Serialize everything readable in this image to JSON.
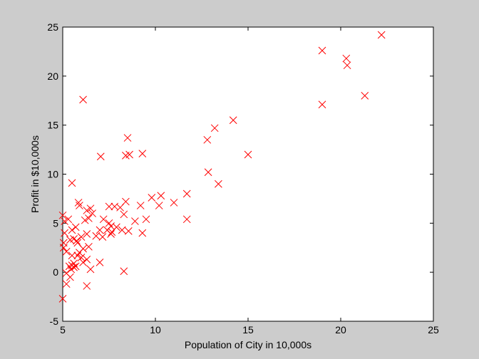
{
  "chart_data": {
    "type": "scatter",
    "title": "",
    "xlabel": "Population of City in 10,000s",
    "ylabel": "Profit in $10,000s",
    "xlim": [
      5,
      25
    ],
    "ylim": [
      -5,
      25
    ],
    "xticks": [
      5,
      10,
      15,
      20,
      25
    ],
    "yticks": [
      -5,
      0,
      5,
      10,
      15,
      20,
      25
    ],
    "grid": false,
    "legend": "none",
    "marker": "x",
    "marker_color": "#ff0000",
    "points": [
      [
        22.2,
        24.2
      ],
      [
        19.0,
        22.6
      ],
      [
        20.3,
        21.8
      ],
      [
        20.35,
        21.1
      ],
      [
        19.0,
        17.1
      ],
      [
        21.3,
        18.0
      ],
      [
        6.1,
        17.6
      ],
      [
        14.2,
        15.5
      ],
      [
        13.2,
        14.7
      ],
      [
        8.5,
        13.7
      ],
      [
        12.8,
        13.5
      ],
      [
        15.0,
        12.0
      ],
      [
        8.4,
        11.9
      ],
      [
        8.6,
        12.0
      ],
      [
        9.3,
        12.1
      ],
      [
        7.05,
        11.8
      ],
      [
        12.85,
        10.2
      ],
      [
        13.4,
        9.0
      ],
      [
        5.5,
        9.1
      ],
      [
        11.7,
        8.0
      ],
      [
        10.3,
        7.8
      ],
      [
        9.8,
        7.6
      ],
      [
        11.0,
        7.1
      ],
      [
        10.2,
        6.8
      ],
      [
        9.2,
        6.8
      ],
      [
        8.4,
        7.2
      ],
      [
        7.5,
        6.7
      ],
      [
        7.8,
        6.7
      ],
      [
        8.1,
        6.6
      ],
      [
        5.85,
        7.1
      ],
      [
        5.9,
        6.8
      ],
      [
        6.5,
        6.5
      ],
      [
        6.3,
        6.3
      ],
      [
        6.6,
        6.0
      ],
      [
        8.3,
        5.9
      ],
      [
        9.5,
        5.4
      ],
      [
        11.7,
        5.4
      ],
      [
        8.9,
        5.2
      ],
      [
        6.4,
        5.5
      ],
      [
        6.2,
        5.3
      ],
      [
        7.2,
        5.4
      ],
      [
        7.5,
        5.0
      ],
      [
        7.6,
        4.7
      ],
      [
        7.9,
        4.6
      ],
      [
        7.4,
        4.3
      ],
      [
        7.65,
        4.1
      ],
      [
        8.2,
        4.3
      ],
      [
        8.55,
        4.2
      ],
      [
        7.0,
        4.3
      ],
      [
        9.3,
        4.0
      ],
      [
        7.15,
        3.6
      ],
      [
        7.6,
        3.9
      ],
      [
        5.0,
        5.8
      ],
      [
        5.1,
        5.2
      ],
      [
        5.3,
        5.4
      ],
      [
        5.7,
        4.6
      ],
      [
        5.5,
        4.3
      ],
      [
        5.1,
        4.0
      ],
      [
        5.6,
        3.4
      ],
      [
        5.75,
        3.2
      ],
      [
        5.8,
        3.0
      ],
      [
        5.4,
        3.3
      ],
      [
        6.3,
        3.9
      ],
      [
        6.8,
        3.7
      ],
      [
        6.0,
        3.6
      ],
      [
        6.4,
        2.6
      ],
      [
        6.1,
        2.4
      ],
      [
        5.05,
        3.0
      ],
      [
        5.05,
        2.5
      ],
      [
        5.2,
        2.1
      ],
      [
        5.5,
        1.7
      ],
      [
        5.8,
        1.7
      ],
      [
        6.0,
        1.5
      ],
      [
        6.3,
        1.3
      ],
      [
        6.1,
        1.0
      ],
      [
        7.0,
        1.0
      ],
      [
        5.9,
        2.0
      ],
      [
        5.35,
        0.6
      ],
      [
        5.6,
        0.9
      ],
      [
        5.5,
        0.7
      ],
      [
        5.45,
        0.3
      ],
      [
        5.6,
        0.5
      ],
      [
        5.7,
        0.6
      ],
      [
        5.2,
        -0.1
      ],
      [
        5.4,
        -0.5
      ],
      [
        5.2,
        -1.2
      ],
      [
        6.5,
        0.3
      ],
      [
        6.3,
        -1.4
      ],
      [
        8.3,
        0.1
      ],
      [
        5.0,
        -2.7
      ]
    ]
  }
}
